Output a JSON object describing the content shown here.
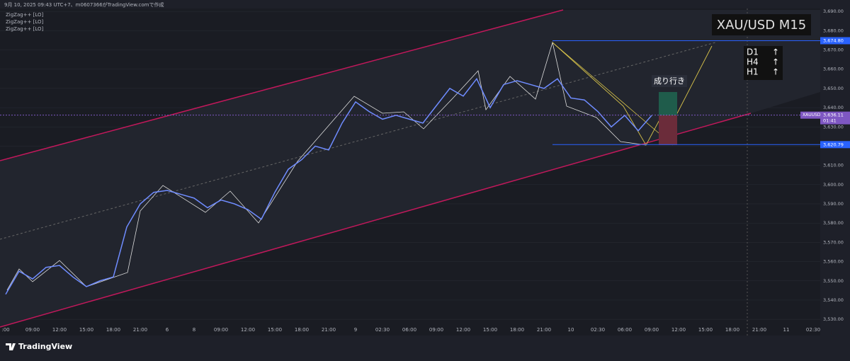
{
  "header": {
    "caption": "9月 10, 2025 09:43 UTC+7、m0607366がTradingView.comで作成",
    "indicators": [
      "ZigZag++ [LO]",
      "ZigZag++ [LO]",
      "ZigZag++ [LO]"
    ],
    "brand": "TradingView"
  },
  "chart_data": {
    "type": "line",
    "title": "XAU/USD M15",
    "color": "#6f8cff",
    "categories": [
      ":00",
      null,
      "09:00",
      null,
      "12:00",
      null,
      "15:00",
      null,
      "18:00",
      null,
      "21:00",
      null,
      "6",
      null,
      "8",
      null,
      "09:00",
      null,
      "12:00",
      null,
      "15:00",
      null,
      "18:00",
      null,
      "21:00",
      null,
      "9",
      null,
      "02:30",
      null,
      "06:00",
      null,
      "09:00",
      null,
      "12:00",
      null,
      "15:00",
      null,
      "18:00",
      null,
      "21:00",
      null,
      "10",
      null,
      "02:30",
      null,
      "06:00",
      null,
      "09:00",
      null,
      "12:00",
      null,
      "15:00",
      null,
      "18:00",
      null,
      "21:00",
      null,
      "11",
      null,
      "02:30"
    ],
    "values": [
      3543,
      3555,
      3551,
      3557,
      3558,
      3552,
      3547,
      3550,
      3552,
      3578,
      3590,
      3596,
      3597,
      3595,
      3593,
      3588,
      3592,
      3590,
      3587,
      3582,
      3596,
      3608,
      3613,
      3620,
      3618,
      3632,
      3643,
      3638,
      3634,
      3636,
      3634,
      3632,
      3641,
      3650,
      3646,
      3655,
      3640,
      3652,
      3654,
      3652,
      3650,
      3655,
      3645,
      3644,
      3638,
      3630,
      3636,
      3628,
      3636,
      null,
      null,
      null,
      null,
      null,
      null,
      null,
      null,
      null,
      null,
      null,
      null
    ],
    "ylim": [
      3526,
      3693
    ],
    "yticks": [
      {
        "value": 3530,
        "label": "3,530.00"
      },
      {
        "value": 3540,
        "label": "3,540.00"
      },
      {
        "value": 3550,
        "label": "3,550.00"
      },
      {
        "value": 3560,
        "label": "3,560.00"
      },
      {
        "value": 3570,
        "label": "3,570.00"
      },
      {
        "value": 3580,
        "label": "3,580.00"
      },
      {
        "value": 3590,
        "label": "3,590.00"
      },
      {
        "value": 3600,
        "label": "3,600.00"
      },
      {
        "value": 3610,
        "label": "3,610.00"
      },
      {
        "value": 3620,
        "label": "3,620.00"
      },
      {
        "value": 3630,
        "label": "3,630.00"
      },
      {
        "value": 3640,
        "label": "3,640.00"
      },
      {
        "value": 3650,
        "label": "3,650.00"
      },
      {
        "value": 3660,
        "label": "3,660.00"
      },
      {
        "value": 3670,
        "label": "3,670.00"
      },
      {
        "value": 3680,
        "label": "3,680.00"
      },
      {
        "value": 3690,
        "label": "3,690.00"
      }
    ],
    "price_lines": [
      {
        "value": 3674.8,
        "label": "3,674.80",
        "color": "#2962ff"
      },
      {
        "value": 3620.79,
        "label": "3,620.79",
        "color": "#2962ff"
      }
    ],
    "current": {
      "symbol": "XAUUSD",
      "value": 3636.11,
      "label": "3,636.11",
      "countdown": "01:41",
      "color": "#7e57c2"
    },
    "timeframes": [
      {
        "label": "D1",
        "arrow": "↑"
      },
      {
        "label": "H4",
        "arrow": "↑"
      },
      {
        "label": "H1",
        "arrow": "↑"
      }
    ],
    "order_note": "成り行き"
  }
}
